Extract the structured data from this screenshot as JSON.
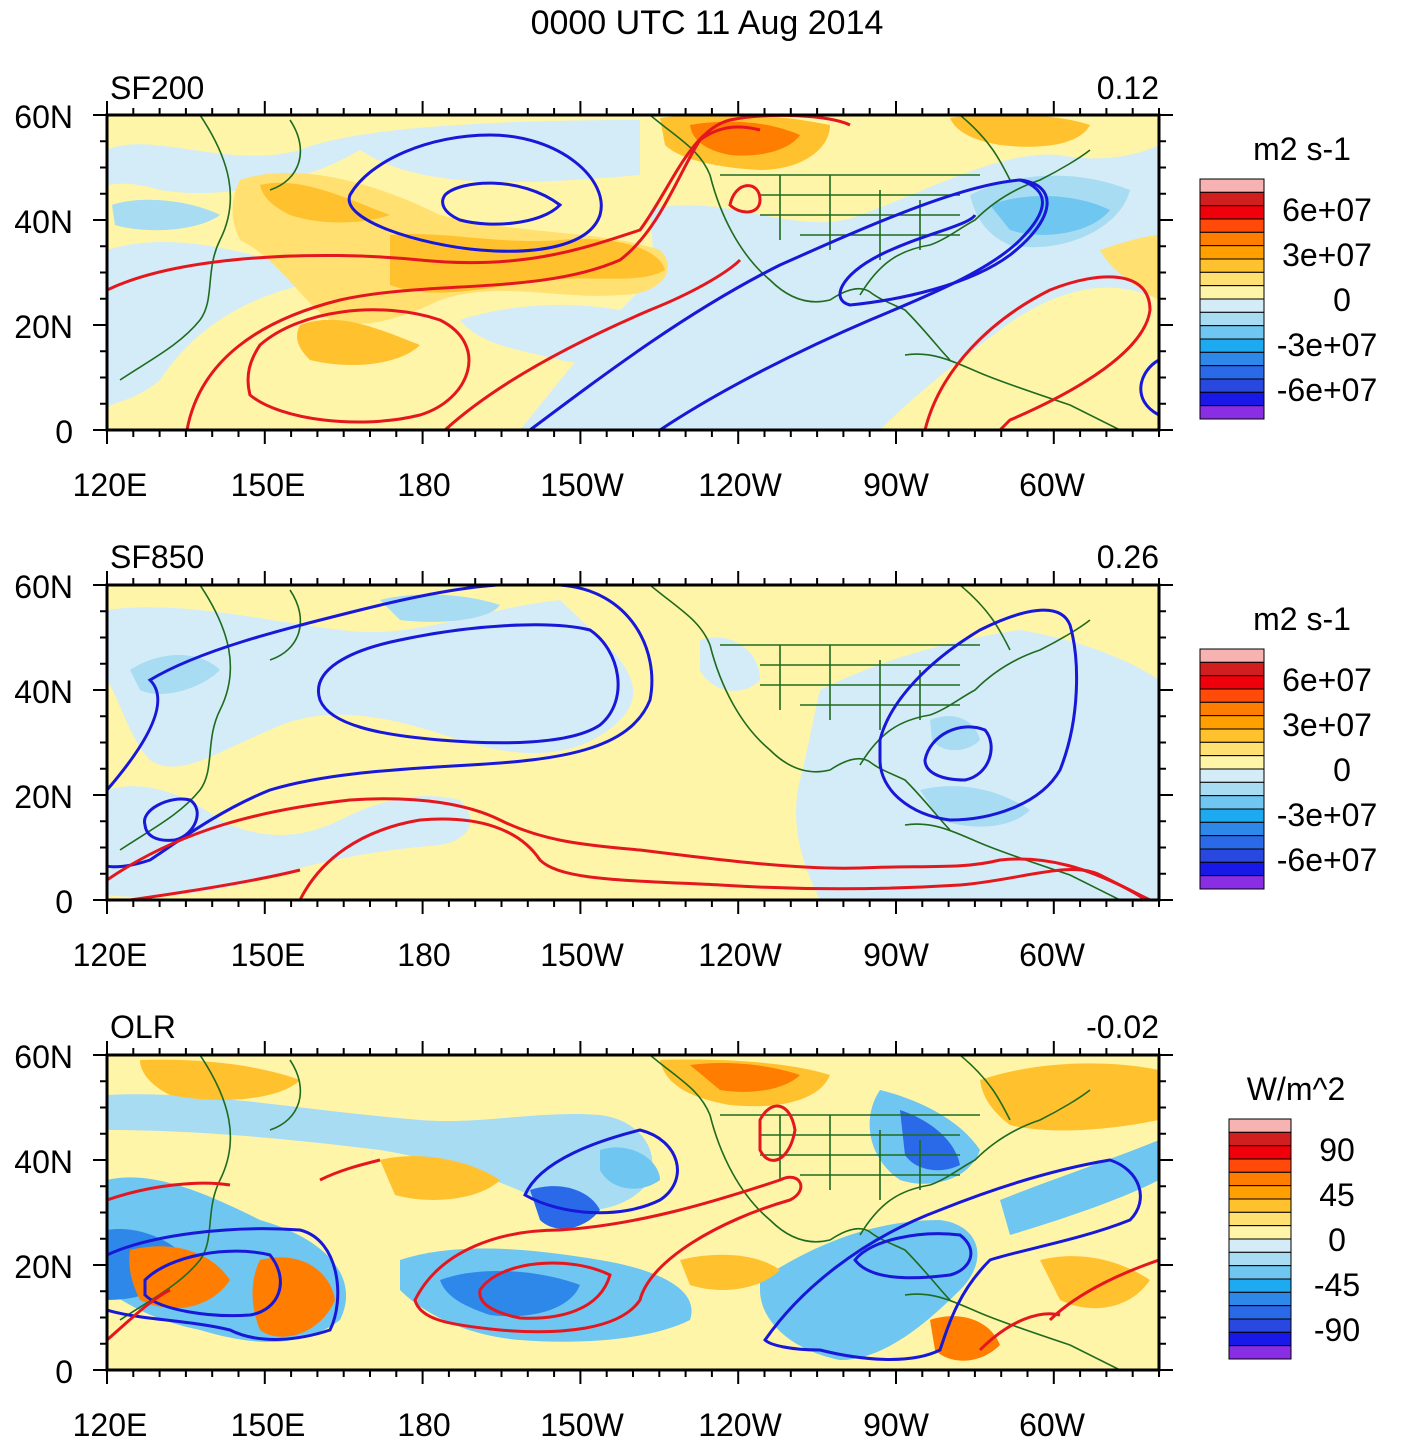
{
  "title": "0000 UTC 11 Aug 2014",
  "chart_data": [
    {
      "type": "heatmap",
      "panel_label": "SF200",
      "corner_value": "0.12",
      "colorbar_title": "m2 s-1",
      "colorbar_labels": [
        "6e+07",
        "3e+07",
        "0",
        "-3e+07",
        "-6e+07"
      ],
      "xticks": [
        "120E",
        "150E",
        "180",
        "150W",
        "120W",
        "90W",
        "60W"
      ],
      "yticks": [
        "60N",
        "40N",
        "20N",
        "0"
      ],
      "xlim": [
        120,
        320
      ],
      "ylim": [
        0,
        60
      ]
    },
    {
      "type": "heatmap",
      "panel_label": "SF850",
      "corner_value": "0.26",
      "colorbar_title": "m2 s-1",
      "colorbar_labels": [
        "6e+07",
        "3e+07",
        "0",
        "-3e+07",
        "-6e+07"
      ],
      "xticks": [
        "120E",
        "150E",
        "180",
        "150W",
        "120W",
        "90W",
        "60W"
      ],
      "yticks": [
        "60N",
        "40N",
        "20N",
        "0"
      ],
      "xlim": [
        120,
        320
      ],
      "ylim": [
        0,
        60
      ]
    },
    {
      "type": "heatmap",
      "panel_label": "OLR",
      "corner_value": "-0.02",
      "colorbar_title": "W/m^2",
      "colorbar_labels": [
        "90",
        "45",
        "0",
        "-45",
        "-90"
      ],
      "xticks": [
        "120E",
        "150E",
        "180",
        "150W",
        "120W",
        "90W",
        "60W"
      ],
      "yticks": [
        "60N",
        "40N",
        "20N",
        "0"
      ],
      "xlim": [
        120,
        320
      ],
      "ylim": [
        0,
        60
      ]
    }
  ],
  "colors": {
    "colorbar": [
      "#f7b2b2",
      "#d11f1f",
      "#f0000a",
      "#ff4a0a",
      "#ff7d00",
      "#ffa000",
      "#ffc22e",
      "#ffe070",
      "#fff5a8",
      "#d4ecf7",
      "#a8dcf3",
      "#6fc6f0",
      "#1eaaf0",
      "#2e88ea",
      "#2a6ae8",
      "#2848e0",
      "#1818e8",
      "#8a2ee6"
    ],
    "positive_contour": "#e4171e",
    "negative_contour": "#1818d8",
    "coastline": "#1f6b1f"
  }
}
